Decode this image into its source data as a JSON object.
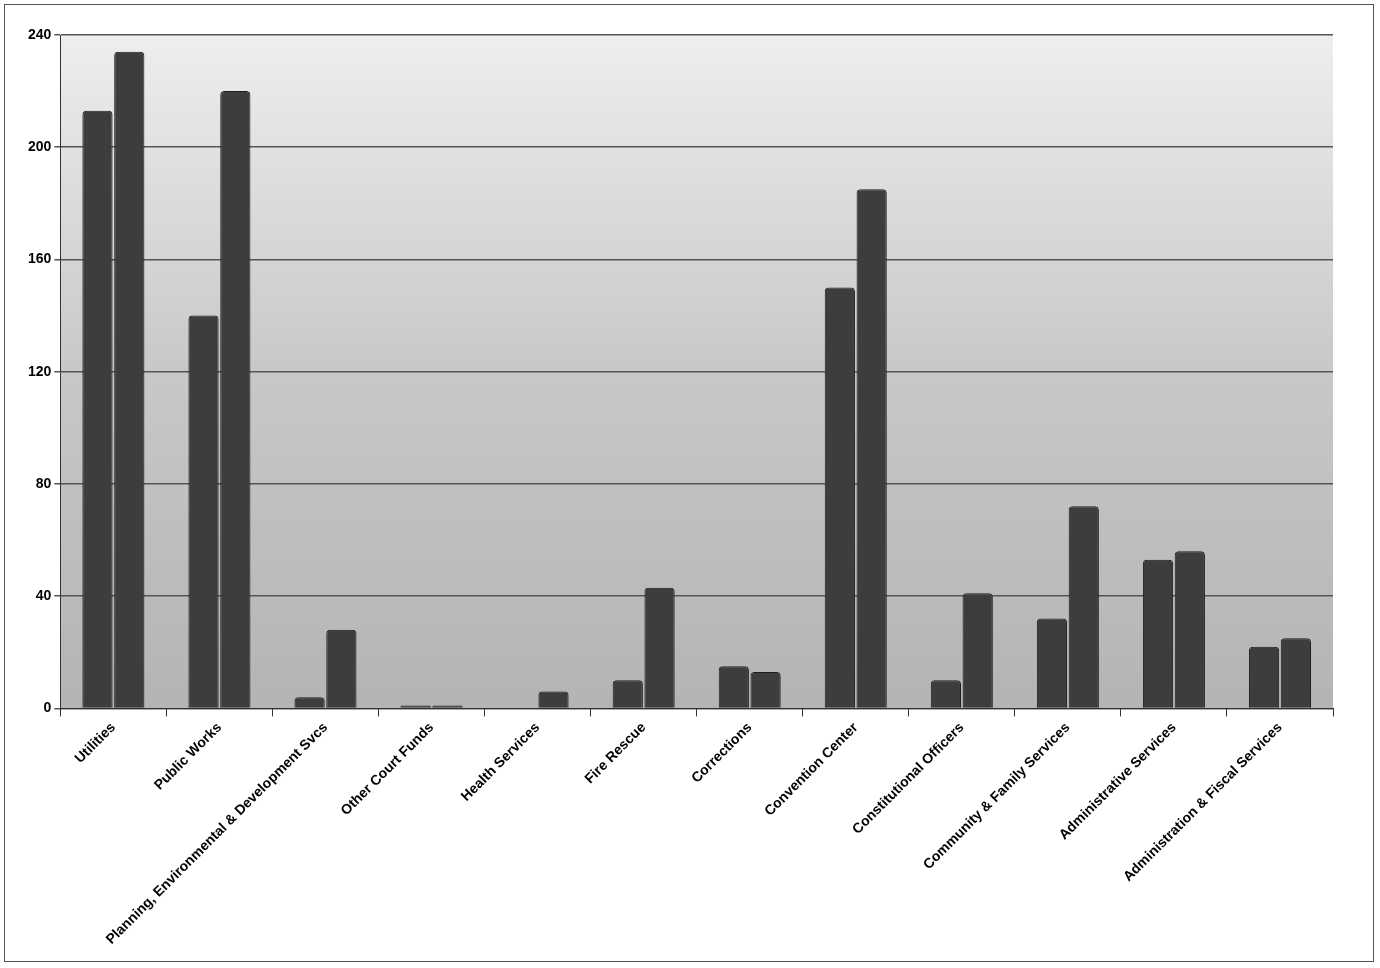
{
  "chart_data": {
    "type": "bar",
    "categories": [
      "Utilities",
      "Public Works",
      "Planning, Environmental & Development Svcs",
      "Other Court Funds",
      "Health Services",
      "Fire Rescue",
      "Corrections",
      "Convention Center",
      "Constitutional Officers",
      "Community & Family Services",
      "Administrative Services",
      "Administration & Fiscal Services"
    ],
    "series": [
      {
        "color": "#3d3d3d",
        "values": [
          213,
          140,
          4,
          1,
          0,
          10,
          15,
          150,
          10,
          32,
          53,
          22
        ]
      },
      {
        "color": "#3d3d3d",
        "values": [
          234,
          220,
          28,
          1,
          6,
          43,
          13,
          185,
          41,
          72,
          56,
          25
        ]
      }
    ],
    "ylim": [
      0,
      240
    ],
    "yticks": [
      0,
      40,
      80,
      120,
      160,
      200,
      240
    ],
    "grid": true
  }
}
